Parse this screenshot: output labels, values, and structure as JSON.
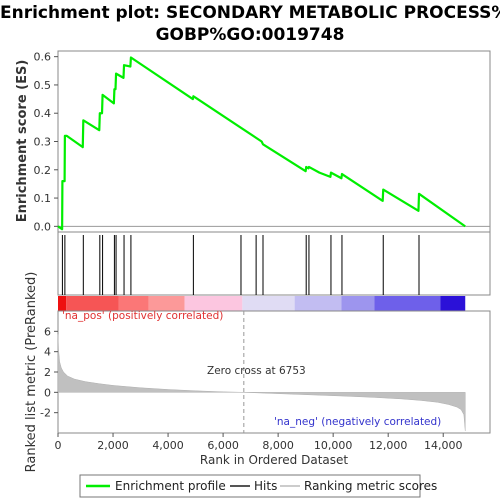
{
  "title": {
    "line1": "Enrichment plot: SECONDARY METABOLIC PROCESS%",
    "line2": "GOBP%GO:0019748"
  },
  "chart_data": [
    {
      "type": "line",
      "panel": "enrichment-profile",
      "ylabel": "Enrichment score (ES)",
      "ylim": [
        -0.02,
        0.62
      ],
      "yticks": [
        0.0,
        0.1,
        0.2,
        0.3,
        0.4,
        0.5,
        0.6
      ],
      "ytick_labels": [
        "0.0",
        "0.1",
        "0.2",
        "0.3",
        "0.4",
        "0.5",
        "0.6"
      ],
      "series": [
        {
          "name": "Enrichment profile",
          "color": "#00ee00",
          "x": [
            0,
            150,
            160,
            240,
            250,
            320,
            900,
            920,
            1500,
            1520,
            1600,
            1620,
            2030,
            2050,
            2090,
            2110,
            2380,
            2400,
            2630,
            2650,
            4900,
            4920,
            5000,
            7400,
            7450,
            9000,
            9020,
            9100,
            9120,
            9500,
            9900,
            9920,
            10300,
            10320,
            11800,
            11820,
            13100,
            13120,
            14800
          ],
          "y": [
            0.0,
            -0.01,
            0.16,
            0.16,
            0.32,
            0.32,
            0.28,
            0.375,
            0.34,
            0.4,
            0.4,
            0.465,
            0.435,
            0.485,
            0.485,
            0.54,
            0.525,
            0.57,
            0.565,
            0.597,
            0.45,
            0.46,
            0.455,
            0.3,
            0.29,
            0.195,
            0.21,
            0.205,
            0.21,
            0.19,
            0.175,
            0.19,
            0.17,
            0.185,
            0.09,
            0.13,
            0.055,
            0.115,
            0.0
          ]
        }
      ]
    },
    {
      "type": "table",
      "panel": "hits",
      "series_name": "Hits",
      "color": "#000000",
      "x": [
        160,
        250,
        920,
        1520,
        1620,
        2050,
        2110,
        2400,
        2650,
        4920,
        6650,
        7200,
        7450,
        9020,
        9120,
        9920,
        10320,
        11820,
        13120
      ]
    },
    {
      "type": "heatmap",
      "panel": "rank-color-bar",
      "segments": [
        {
          "from": 0,
          "to": 300,
          "color": "#ee1111"
        },
        {
          "from": 300,
          "to": 2200,
          "color": "#f65555"
        },
        {
          "from": 2200,
          "to": 3300,
          "color": "#fb7777"
        },
        {
          "from": 3300,
          "to": 4600,
          "color": "#fc9999"
        },
        {
          "from": 4600,
          "to": 6700,
          "color": "#fcc6e0"
        },
        {
          "from": 6700,
          "to": 8600,
          "color": "#e0dcf4"
        },
        {
          "from": 8600,
          "to": 10300,
          "color": "#c2bdf2"
        },
        {
          "from": 10300,
          "to": 11500,
          "color": "#9d95ee"
        },
        {
          "from": 11500,
          "to": 13900,
          "color": "#6e60ea"
        },
        {
          "from": 13900,
          "to": 14800,
          "color": "#2b11d8"
        }
      ]
    },
    {
      "type": "area",
      "panel": "ranked-list-metric",
      "series_name": "Ranking metric scores",
      "color": "#c0c0c0",
      "ylabel": "Ranked list metric (PreRanked)",
      "xlabel": "Rank in Ordered Dataset",
      "ylim": [
        -4.0,
        8.0
      ],
      "yticks": [
        -2,
        0,
        2,
        4,
        6
      ],
      "ytick_labels": [
        "-2",
        "0",
        "2",
        "4",
        "6"
      ],
      "xlim": [
        0,
        15700
      ],
      "xticks": [
        0,
        2000,
        4000,
        6000,
        8000,
        10000,
        12000,
        14000
      ],
      "xtick_labels": [
        "0",
        "2,000",
        "4,000",
        "6,000",
        "8,000",
        "10,000",
        "12,000",
        "14,000"
      ],
      "x": [
        0,
        20,
        60,
        120,
        200,
        350,
        600,
        1000,
        1500,
        2000,
        3000,
        4000,
        5000,
        6000,
        6753,
        7500,
        8500,
        9500,
        10500,
        11500,
        12500,
        13200,
        13800,
        14200,
        14500,
        14650,
        14750,
        14800
      ],
      "y": [
        5.7,
        4.2,
        3.0,
        2.4,
        2.0,
        1.6,
        1.3,
        1.05,
        0.85,
        0.68,
        0.45,
        0.28,
        0.15,
        0.05,
        0.0,
        -0.08,
        -0.18,
        -0.28,
        -0.38,
        -0.5,
        -0.65,
        -0.8,
        -0.98,
        -1.2,
        -1.45,
        -1.7,
        -2.2,
        -3.8
      ],
      "annotations": {
        "pos": "'na_pos' (positively correlated)",
        "neg": "'na_neg' (negatively correlated)",
        "zero_cross": "Zero cross at 6753"
      },
      "zero_cross_x": 6753,
      "pos_color": "#e03030",
      "neg_color": "#3333cc"
    }
  ],
  "legend": {
    "items": [
      {
        "label": "Enrichment profile",
        "color": "#00ee00"
      },
      {
        "label": "Hits",
        "color": "#555555"
      },
      {
        "label": "Ranking metric scores",
        "color": "#cccccc"
      }
    ]
  }
}
